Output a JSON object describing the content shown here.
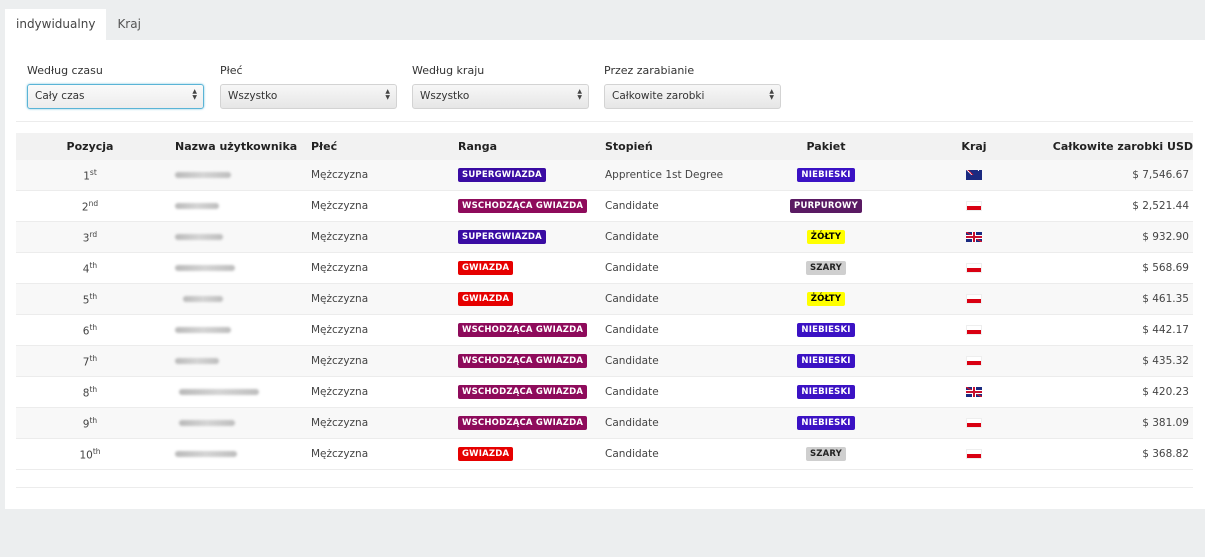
{
  "tabs": [
    {
      "label": "indywidualny"
    },
    {
      "label": "Kraj"
    }
  ],
  "filters": [
    {
      "label": "Według czasu",
      "value": "Cały czas"
    },
    {
      "label": "Płeć",
      "value": "Wszystko"
    },
    {
      "label": "Według kraju",
      "value": "Wszystko"
    },
    {
      "label": "Przez zarabianie",
      "value": "Całkowite zarobki"
    }
  ],
  "table": {
    "headers": [
      "Pozycja",
      "Nazwa użytkownika",
      "Płeć",
      "Ranga",
      "Stopień",
      "Pakiet",
      "Kraj",
      "Całkowite zarobki USD"
    ],
    "rows": [
      {
        "pos": "1",
        "suf": "st",
        "gender": "Mężczyzna",
        "rank": "SUPERGWIAZDA",
        "rank_color": "#3a0ca3",
        "degree": "Apprentice 1st Degree",
        "package": "NIEBIESKI",
        "pkg_bg": "#3b12c4",
        "pkg_fg": "#ffffff",
        "country": "flag-au",
        "earn": "$ 7,546.67"
      },
      {
        "pos": "2",
        "suf": "nd",
        "gender": "Mężczyzna",
        "rank": "WSCHODZĄCA GWIAZDA",
        "rank_color": "#8e0b5b",
        "degree": "Candidate",
        "package": "PURPUROWY",
        "pkg_bg": "#5a1a63",
        "pkg_fg": "#ffffff",
        "country": "flag-pl",
        "earn": "$ 2,521.44"
      },
      {
        "pos": "3",
        "suf": "rd",
        "gender": "Mężczyzna",
        "rank": "SUPERGWIAZDA",
        "rank_color": "#3a0ca3",
        "degree": "Candidate",
        "package": "ŻÓŁTY",
        "pkg_bg": "#ffff00",
        "pkg_fg": "#000000",
        "country": "flag-gb",
        "earn": "$ 932.90"
      },
      {
        "pos": "4",
        "suf": "th",
        "gender": "Mężczyzna",
        "rank": "GWIAZDA",
        "rank_color": "#e60000",
        "degree": "Candidate",
        "package": "SZARY",
        "pkg_bg": "#cfcfcf",
        "pkg_fg": "#222222",
        "country": "flag-pl",
        "earn": "$ 568.69"
      },
      {
        "pos": "5",
        "suf": "th",
        "gender": "Mężczyzna",
        "rank": "GWIAZDA",
        "rank_color": "#e60000",
        "degree": "Candidate",
        "package": "ŻÓŁTY",
        "pkg_bg": "#ffff00",
        "pkg_fg": "#000000",
        "country": "flag-pl",
        "earn": "$ 461.35"
      },
      {
        "pos": "6",
        "suf": "th",
        "gender": "Mężczyzna",
        "rank": "WSCHODZĄCA GWIAZDA",
        "rank_color": "#8e0b5b",
        "degree": "Candidate",
        "package": "NIEBIESKI",
        "pkg_bg": "#3b12c4",
        "pkg_fg": "#ffffff",
        "country": "flag-pl",
        "earn": "$ 442.17"
      },
      {
        "pos": "7",
        "suf": "th",
        "gender": "Mężczyzna",
        "rank": "WSCHODZĄCA GWIAZDA",
        "rank_color": "#8e0b5b",
        "degree": "Candidate",
        "package": "NIEBIESKI",
        "pkg_bg": "#3b12c4",
        "pkg_fg": "#ffffff",
        "country": "flag-pl",
        "earn": "$ 435.32"
      },
      {
        "pos": "8",
        "suf": "th",
        "gender": "Mężczyzna",
        "rank": "WSCHODZĄCA GWIAZDA",
        "rank_color": "#8e0b5b",
        "degree": "Candidate",
        "package": "NIEBIESKI",
        "pkg_bg": "#3b12c4",
        "pkg_fg": "#ffffff",
        "country": "flag-gb",
        "earn": "$ 420.23"
      },
      {
        "pos": "9",
        "suf": "th",
        "gender": "Mężczyzna",
        "rank": "WSCHODZĄCA GWIAZDA",
        "rank_color": "#8e0b5b",
        "degree": "Candidate",
        "package": "NIEBIESKI",
        "pkg_bg": "#3b12c4",
        "pkg_fg": "#ffffff",
        "country": "flag-pl",
        "earn": "$ 381.09"
      },
      {
        "pos": "10",
        "suf": "th",
        "gender": "Mężczyzna",
        "rank": "GWIAZDA",
        "rank_color": "#e60000",
        "degree": "Candidate",
        "package": "SZARY",
        "pkg_bg": "#cfcfcf",
        "pkg_fg": "#222222",
        "country": "flag-pl",
        "earn": "$ 368.82"
      }
    ]
  }
}
